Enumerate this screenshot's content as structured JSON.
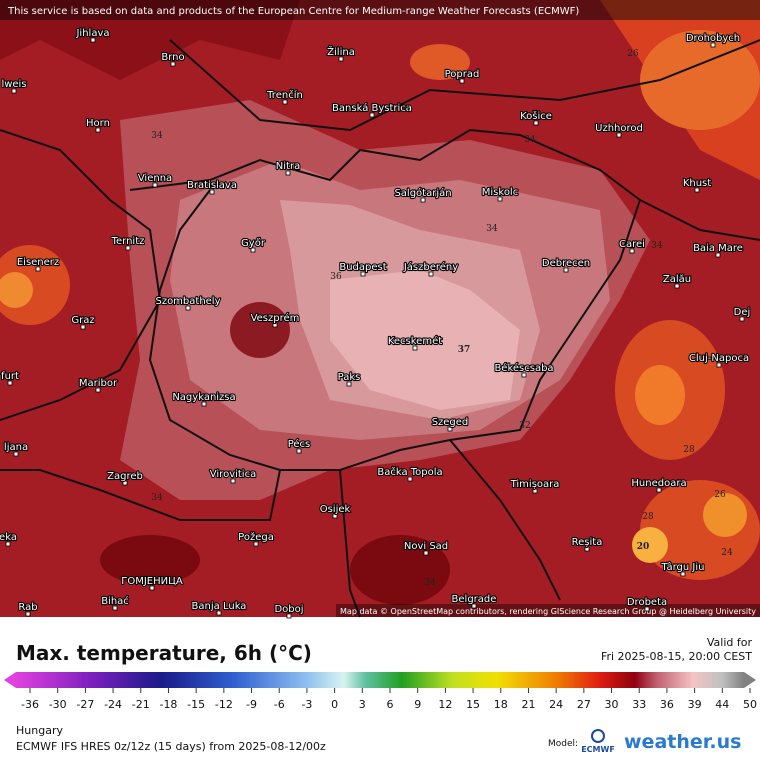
{
  "banner": "This service is based on data and products of the European Centre for Medium-range Weather Forecasts (ECMWF)",
  "attribution": "Map data © OpenStreetMap contributors, rendering GIScience Research Group @ Heidelberg University",
  "cities": [
    "Jihlava",
    "Brno",
    "Žilina",
    "Poprad",
    "Drohobych",
    "lweis",
    "Trenčín",
    "Banská Bystrica",
    "Košice",
    "Uzhhorod",
    "Horn",
    "Nitra",
    "Vienna",
    "Bratislava",
    "Salgótarján",
    "Miskolc",
    "Khust",
    "Ternitz",
    "Győr",
    "Carei",
    "Baia Mare",
    "Eisenerz",
    "Budapest",
    "Jászberény",
    "Debrecen",
    "Zalău",
    "Szombathely",
    "Dej",
    "Graz",
    "Veszprém",
    "Kecskemét",
    "Cluj-Napoca",
    "Békéscsaba",
    "furt",
    "Paks",
    "Maribor",
    "Nagykanizsa",
    "ljana",
    "Szeged",
    "Pécs",
    "Zagreb",
    "Virovitica",
    "Bačka Topola",
    "Timișoara",
    "Hunedoara",
    "Osijek",
    "eka",
    "Požega",
    "Reșita",
    "Novi Sad",
    "Târgu Jiu",
    "ГОМЈЕНИЦА",
    "Bihać",
    "Banja Luka",
    "Doboj",
    "Belgrade",
    "Drobeta",
    "Rab"
  ],
  "contour_labels": [
    34,
    34,
    34,
    36,
    37,
    32,
    34,
    34,
    26,
    30,
    28,
    28,
    26,
    24,
    20,
    34
  ],
  "legend": {
    "title": "Max. temperature, 6h (°C)",
    "valid_label": "Valid for",
    "valid_time": "Fri 2025-08-15, 20:00 CEST",
    "ticks": [
      -36,
      -30,
      -27,
      -24,
      -21,
      -18,
      -15,
      -12,
      -9,
      -6,
      -3,
      0,
      3,
      6,
      9,
      12,
      15,
      18,
      21,
      24,
      27,
      30,
      33,
      36,
      39,
      44,
      50
    ]
  },
  "footer": {
    "region": "Hungary",
    "model_run": "ECMWF IFS HRES 0z/12z (15 days) from  2025-08-12/00z",
    "model_label": "Model:",
    "model_name": "ECMWF",
    "brand": "weather.us"
  }
}
